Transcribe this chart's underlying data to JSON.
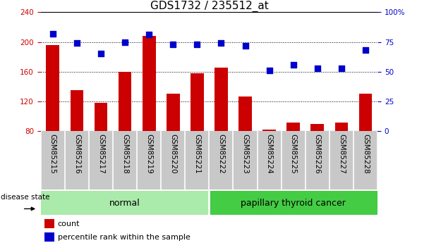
{
  "title": "GDS1732 / 235512_at",
  "samples": [
    "GSM85215",
    "GSM85216",
    "GSM85217",
    "GSM85218",
    "GSM85219",
    "GSM85220",
    "GSM85221",
    "GSM85222",
    "GSM85223",
    "GSM85224",
    "GSM85225",
    "GSM85226",
    "GSM85227",
    "GSM85228"
  ],
  "bar_values": [
    196,
    135,
    118,
    160,
    208,
    130,
    158,
    165,
    127,
    82,
    92,
    90,
    92,
    130
  ],
  "dot_values": [
    82,
    74,
    65,
    75,
    81,
    73,
    73,
    74,
    72,
    51,
    56,
    53,
    53,
    68
  ],
  "bar_bottom": 80,
  "ylim_left": [
    80,
    240
  ],
  "ylim_right": [
    0,
    100
  ],
  "yticks_left": [
    80,
    120,
    160,
    200,
    240
  ],
  "yticks_right": [
    0,
    25,
    50,
    75,
    100
  ],
  "groups": [
    {
      "label": "normal",
      "start": 0,
      "end": 7,
      "color": "#AAEAAA"
    },
    {
      "label": "papillary thyroid cancer",
      "start": 7,
      "end": 14,
      "color": "#44CC44"
    }
  ],
  "bar_color": "#CC0000",
  "dot_color": "#0000CC",
  "dot_size": 30,
  "background_color": "#ffffff",
  "tick_area_color": "#C8C8C8",
  "legend_count_label": "count",
  "legend_pct_label": "percentile rank within the sample",
  "disease_state_label": "disease state",
  "title_fontsize": 11,
  "tick_fontsize": 7.5,
  "group_label_fontsize": 9,
  "legend_fontsize": 8
}
